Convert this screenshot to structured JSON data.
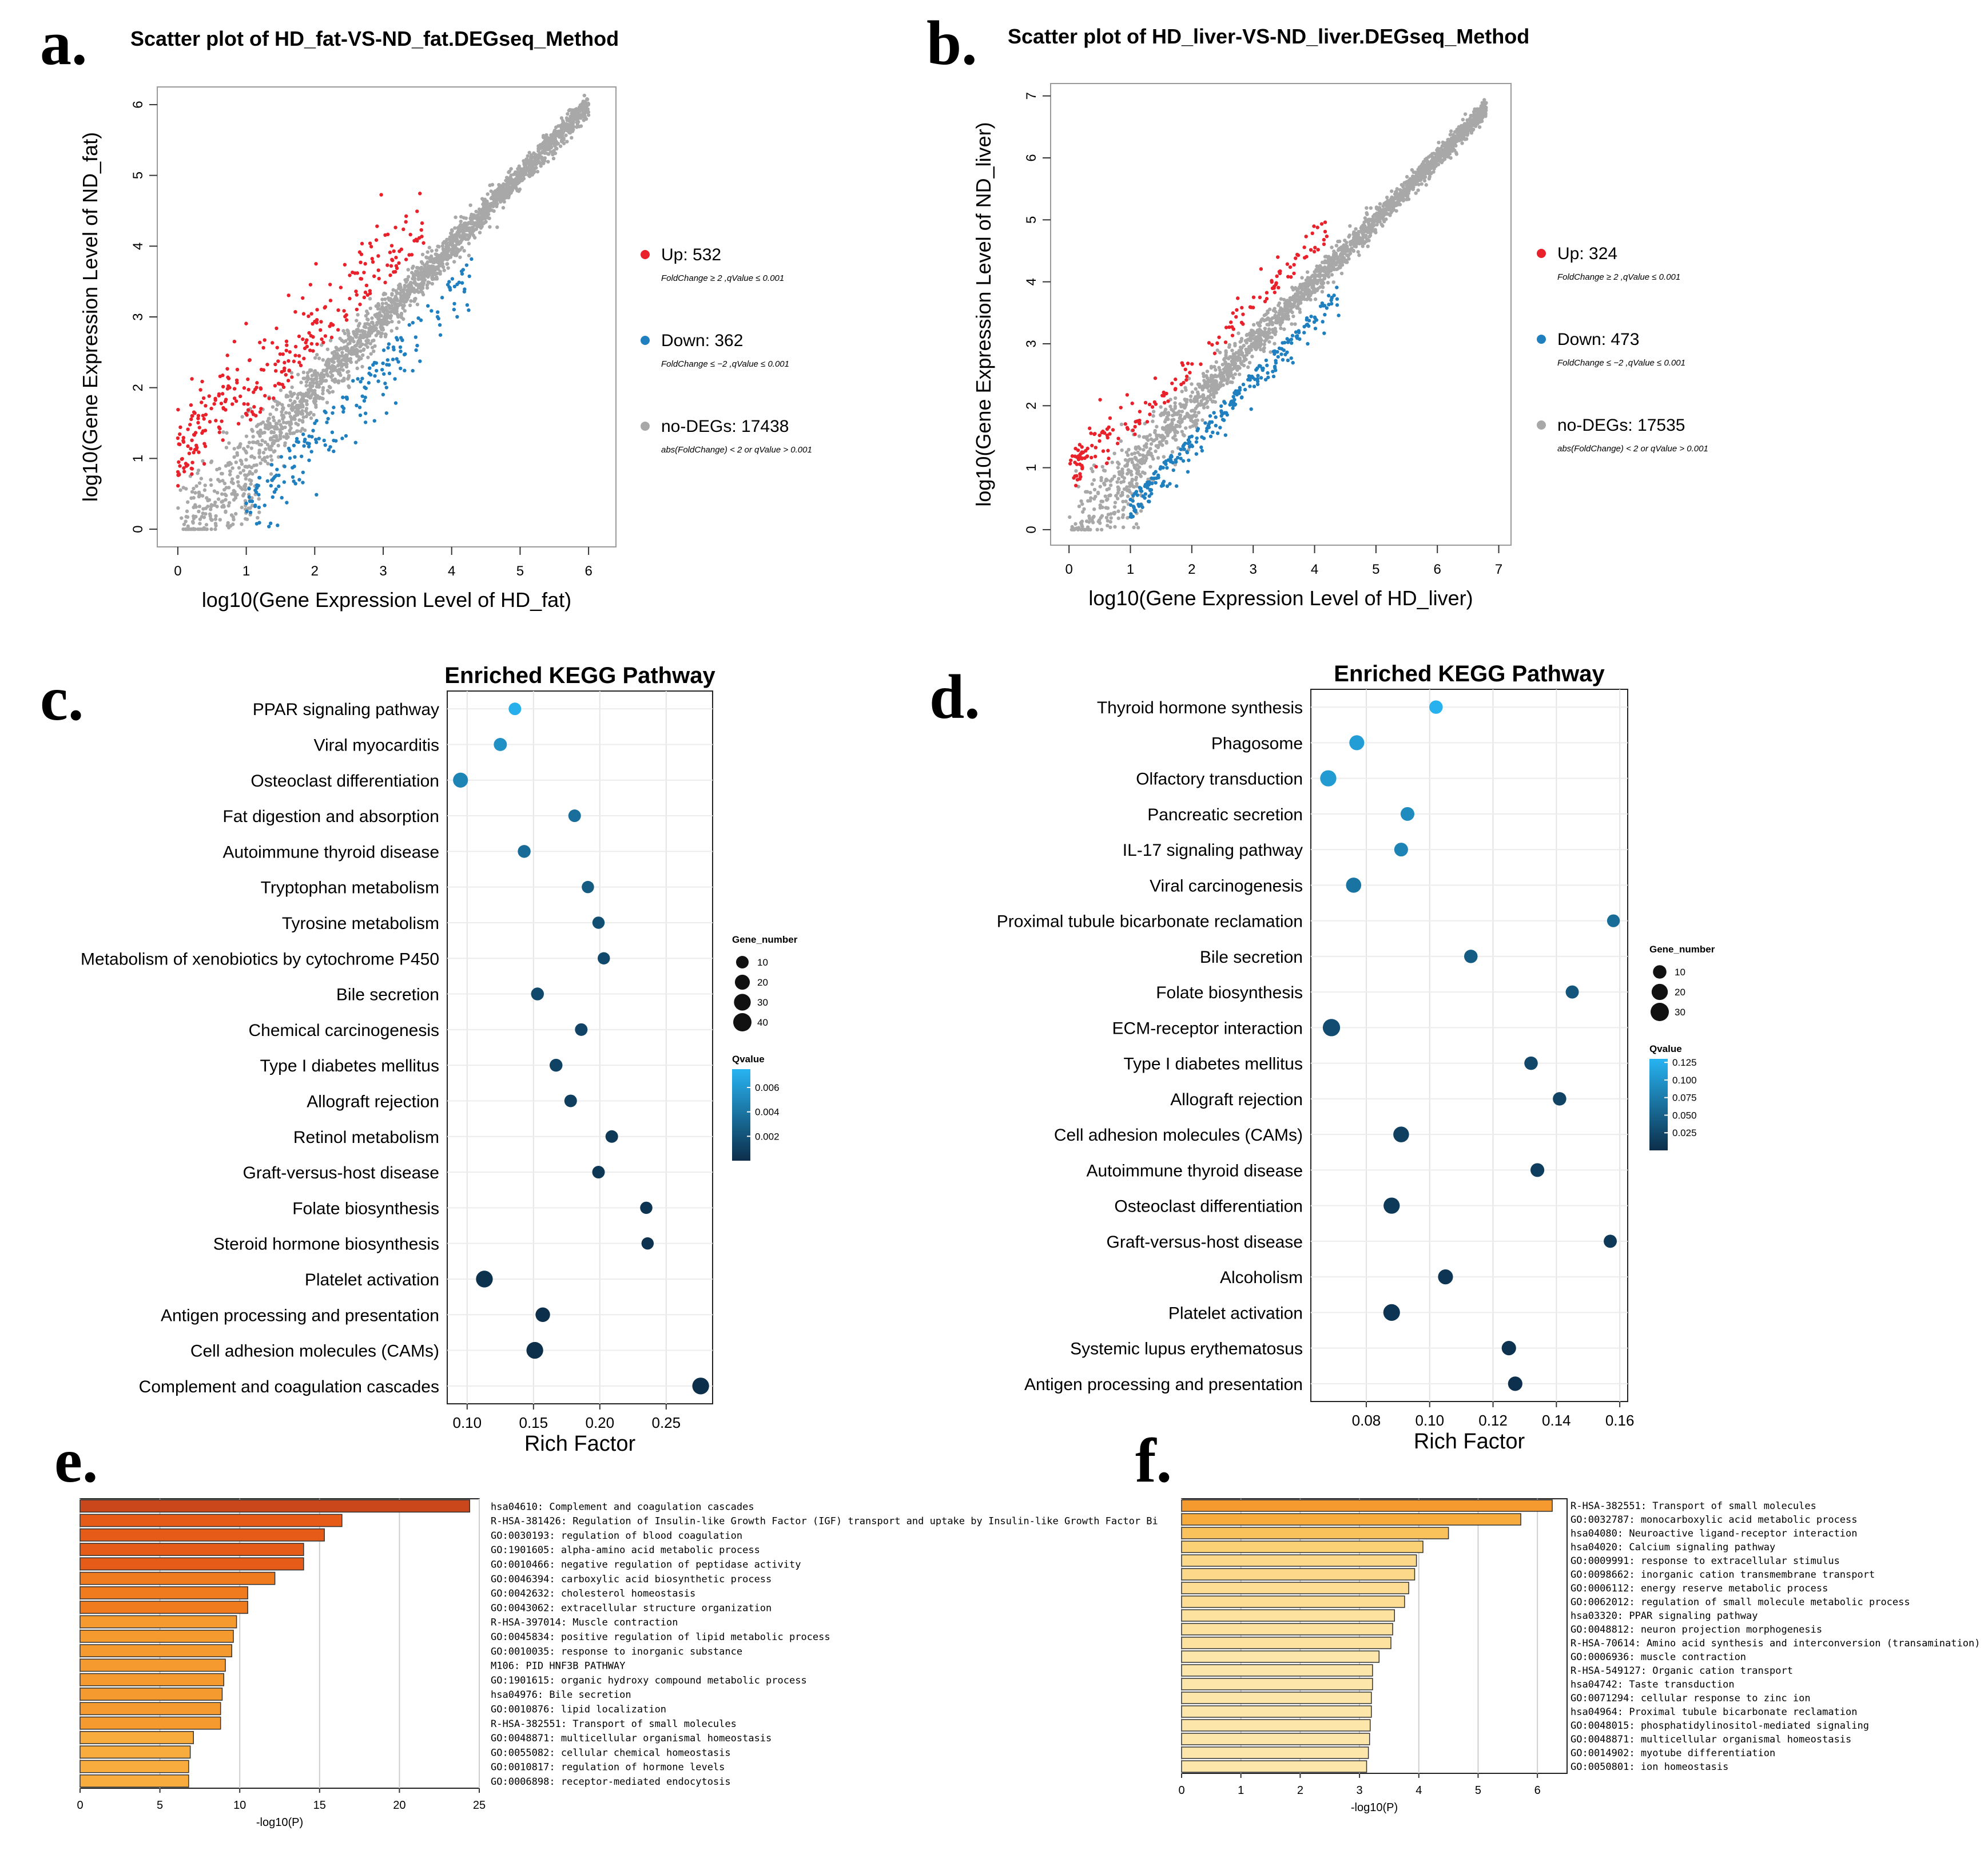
{
  "panels": [
    {
      "letter": "a."
    },
    {
      "letter": "b."
    },
    {
      "letter": "c."
    },
    {
      "letter": "d."
    },
    {
      "letter": "e."
    },
    {
      "letter": "f."
    }
  ],
  "chart_data": [
    {
      "panel": "a",
      "type": "scatter",
      "title": "Scatter plot of HD_fat-VS-ND_fat.DEGseq_Method",
      "xlabel": "log10(Gene Expression Level of HD_fat)",
      "ylabel": "log10(Gene Expression Level of ND_fat)",
      "xlim": [
        -0.3,
        6.4
      ],
      "ylim": [
        -0.25,
        6.25
      ],
      "xticks": [
        0,
        1,
        2,
        3,
        4,
        5,
        6
      ],
      "yticks": [
        0,
        1,
        2,
        3,
        4,
        5,
        6
      ],
      "legend_position": "right",
      "legend": [
        {
          "label": "Up: 532",
          "note": "FoldChange ≥ 2 ,qValue ≤ 0.001",
          "color": "#e8212b",
          "count": 532
        },
        {
          "label": "Down: 362",
          "note": "FoldChange ≤ −2 ,qValue ≤ 0.001",
          "color": "#1f7fbf",
          "count": 362
        },
        {
          "label": "no-DEGs: 17438",
          "note": "abs(FoldChange) < 2  or qValue > 0.001",
          "color": "#a8a8a8",
          "count": 17438
        }
      ]
    },
    {
      "panel": "b",
      "type": "scatter",
      "title": "Scatter plot of HD_liver-VS-ND_liver.DEGseq_Method",
      "xlabel": "log10(Gene Expression Level of HD_liver)",
      "ylabel": "log10(Gene Expression Level of ND_liver)",
      "xlim": [
        -0.3,
        7.2
      ],
      "ylim": [
        -0.25,
        7.2
      ],
      "xticks": [
        0,
        1,
        2,
        3,
        4,
        5,
        6,
        7
      ],
      "yticks": [
        0,
        1,
        2,
        3,
        4,
        5,
        6,
        7
      ],
      "legend_position": "right",
      "legend": [
        {
          "label": "Up: 324",
          "note": "FoldChange ≥ 2 ,qValue ≤ 0.001",
          "color": "#e8212b",
          "count": 324
        },
        {
          "label": "Down: 473",
          "note": "FoldChange ≤ −2 ,qValue ≤ 0.001",
          "color": "#1f7fbf",
          "count": 473
        },
        {
          "label": "no-DEGs: 17535",
          "note": "abs(FoldChange) < 2  or qValue > 0.001",
          "color": "#a8a8a8",
          "count": 17535
        }
      ]
    },
    {
      "panel": "c",
      "type": "scatter",
      "title": "Enriched KEGG Pathway",
      "xlabel": "Rich Factor",
      "xlim": [
        0.085,
        0.285
      ],
      "xticks": [
        "0.10",
        "0.15",
        "0.20",
        "0.25"
      ],
      "size_title": "Gene_number",
      "sizes": [
        10,
        20,
        30,
        40
      ],
      "color_title": "Qvalue",
      "color_ticks": [
        "0.006",
        "0.004",
        "0.002"
      ],
      "color_range": [
        0.0,
        0.0075
      ],
      "pathways": [
        {
          "name": "PPAR signaling pathway",
          "rich": 0.136,
          "genes": 10,
          "q": 0.0072
        },
        {
          "name": "Viral myocarditis",
          "rich": 0.125,
          "genes": 12,
          "q": 0.0055
        },
        {
          "name": "Osteoclast differentiation",
          "rich": 0.095,
          "genes": 20,
          "q": 0.0048
        },
        {
          "name": "Fat digestion and absorption",
          "rich": 0.181,
          "genes": 10,
          "q": 0.0036
        },
        {
          "name": "Autoimmune thyroid disease",
          "rich": 0.143,
          "genes": 11,
          "q": 0.0034
        },
        {
          "name": "Tryptophan metabolism",
          "rich": 0.191,
          "genes": 9,
          "q": 0.0025
        },
        {
          "name": "Tyrosine metabolism",
          "rich": 0.199,
          "genes": 9,
          "q": 0.0018
        },
        {
          "name": "Metabolism of xenobiotics by cytochrome P450",
          "rich": 0.203,
          "genes": 9,
          "q": 0.0015
        },
        {
          "name": "Bile secretion",
          "rich": 0.153,
          "genes": 11,
          "q": 0.0015
        },
        {
          "name": "Chemical carcinogenesis",
          "rich": 0.186,
          "genes": 10,
          "q": 0.0012
        },
        {
          "name": "Type I diabetes mellitus",
          "rich": 0.167,
          "genes": 11,
          "q": 0.0011
        },
        {
          "name": "Allograft rejection",
          "rich": 0.178,
          "genes": 10,
          "q": 0.0009
        },
        {
          "name": "Retinol metabolism",
          "rich": 0.209,
          "genes": 10,
          "q": 0.0006
        },
        {
          "name": "Graft-versus-host disease",
          "rich": 0.199,
          "genes": 10,
          "q": 0.0005
        },
        {
          "name": "Folate biosynthesis",
          "rich": 0.235,
          "genes": 9,
          "q": 0.0004
        },
        {
          "name": "Steroid hormone biosynthesis",
          "rich": 0.236,
          "genes": 9,
          "q": 0.0003
        },
        {
          "name": "Platelet activation",
          "rich": 0.113,
          "genes": 30,
          "q": 0.0002
        },
        {
          "name": "Antigen processing and presentation",
          "rich": 0.157,
          "genes": 18,
          "q": 0.0001
        },
        {
          "name": "Cell adhesion molecules (CAMs)",
          "rich": 0.151,
          "genes": 30,
          "q": 0.0001
        },
        {
          "name": "Complement and coagulation cascades",
          "rich": 0.276,
          "genes": 30,
          "q": 5e-05
        }
      ]
    },
    {
      "panel": "d",
      "type": "scatter",
      "title": "Enriched KEGG Pathway",
      "xlabel": "Rich Factor",
      "xlim": [
        0.0625,
        0.1625
      ],
      "xticks": [
        "0.08",
        "0.10",
        "0.12",
        "0.14",
        "0.16"
      ],
      "size_title": "Gene_number",
      "sizes": [
        10,
        20,
        30
      ],
      "color_title": "Qvalue",
      "color_ticks": [
        "0.125",
        "0.100",
        "0.075",
        "0.050",
        "0.025"
      ],
      "color_range": [
        0.0,
        0.13
      ],
      "pathways": [
        {
          "name": "Thyroid hormone synthesis",
          "rich": 0.102,
          "genes": 10,
          "q": 0.128
        },
        {
          "name": "Phagosome",
          "rich": 0.077,
          "genes": 15,
          "q": 0.108
        },
        {
          "name": "Olfactory transduction",
          "rich": 0.068,
          "genes": 20,
          "q": 0.105
        },
        {
          "name": "Pancreatic secretion",
          "rich": 0.093,
          "genes": 11,
          "q": 0.09
        },
        {
          "name": "IL-17 signaling pathway",
          "rich": 0.091,
          "genes": 11,
          "q": 0.082
        },
        {
          "name": "Viral carcinogenesis",
          "rich": 0.076,
          "genes": 16,
          "q": 0.068
        },
        {
          "name": "Proximal tubule bicarbonate reclamation",
          "rich": 0.158,
          "genes": 8,
          "q": 0.06
        },
        {
          "name": "Bile secretion",
          "rich": 0.113,
          "genes": 10,
          "q": 0.045
        },
        {
          "name": "Folate biosynthesis",
          "rich": 0.145,
          "genes": 9,
          "q": 0.038
        },
        {
          "name": "ECM-receptor interaction",
          "rich": 0.069,
          "genes": 25,
          "q": 0.03
        },
        {
          "name": "Type I diabetes mellitus",
          "rich": 0.132,
          "genes": 10,
          "q": 0.025
        },
        {
          "name": "Allograft rejection",
          "rich": 0.141,
          "genes": 10,
          "q": 0.02
        },
        {
          "name": "Cell adhesion molecules (CAMs)",
          "rich": 0.091,
          "genes": 18,
          "q": 0.017
        },
        {
          "name": "Autoimmune thyroid disease",
          "rich": 0.134,
          "genes": 11,
          "q": 0.015
        },
        {
          "name": "Osteoclast differentiation",
          "rich": 0.088,
          "genes": 20,
          "q": 0.012
        },
        {
          "name": "Graft-versus-host disease",
          "rich": 0.157,
          "genes": 9,
          "q": 0.01
        },
        {
          "name": "Alcoholism",
          "rich": 0.105,
          "genes": 15,
          "q": 0.008
        },
        {
          "name": "Platelet activation",
          "rich": 0.088,
          "genes": 22,
          "q": 0.006
        },
        {
          "name": "Systemic lupus erythematosus",
          "rich": 0.125,
          "genes": 13,
          "q": 0.004
        },
        {
          "name": "Antigen processing and presentation",
          "rich": 0.127,
          "genes": 13,
          "q": 0.002
        }
      ]
    },
    {
      "panel": "e",
      "type": "bar",
      "orientation": "horizontal",
      "xlabel": "-log10(P)",
      "xlim": [
        0,
        25
      ],
      "xticks": [
        0,
        5,
        10,
        15,
        20,
        25
      ],
      "grid": true,
      "bars": [
        {
          "label": "hsa04610: Complement and coagulation cascades",
          "value": 24.4,
          "color": "#c9471a"
        },
        {
          "label": "R-HSA-381426: Regulation of Insulin-like Growth Factor (IGF) transport and uptake by Insulin-like Growth Factor Bi",
          "value": 16.4,
          "color": "#e55b17"
        },
        {
          "label": "GO:0030193: regulation of blood coagulation",
          "value": 15.3,
          "color": "#e55b17"
        },
        {
          "label": "GO:1901605: alpha-amino acid metabolic process",
          "value": 14.0,
          "color": "#e55b17"
        },
        {
          "label": "GO:0010466: negative regulation of peptidase activity",
          "value": 14.0,
          "color": "#e55b17"
        },
        {
          "label": "GO:0046394: carboxylic acid biosynthetic process",
          "value": 12.2,
          "color": "#f07a1e"
        },
        {
          "label": "GO:0042632: cholesterol homeostasis",
          "value": 10.5,
          "color": "#f07a1e"
        },
        {
          "label": "GO:0043062: extracellular structure organization",
          "value": 10.5,
          "color": "#f07a1e"
        },
        {
          "label": "R-HSA-397014: Muscle contraction",
          "value": 9.8,
          "color": "#f59a2e"
        },
        {
          "label": "GO:0045834: positive regulation of lipid metabolic process",
          "value": 9.6,
          "color": "#f59a2e"
        },
        {
          "label": "GO:0010035: response to inorganic substance",
          "value": 9.5,
          "color": "#f59a2e"
        },
        {
          "label": "M106: PID HNF3B PATHWAY",
          "value": 9.1,
          "color": "#f59a2e"
        },
        {
          "label": "GO:1901615: organic hydroxy compound metabolic process",
          "value": 9.0,
          "color": "#f59a2e"
        },
        {
          "label": "hsa04976: Bile secretion",
          "value": 8.9,
          "color": "#f59a2e"
        },
        {
          "label": "GO:0010876: lipid localization",
          "value": 8.8,
          "color": "#f59a2e"
        },
        {
          "label": "R-HSA-382551: Transport of small molecules",
          "value": 8.8,
          "color": "#f59a2e"
        },
        {
          "label": "GO:0048871: multicellular organismal homeostasis",
          "value": 7.1,
          "color": "#f8ac3e"
        },
        {
          "label": "GO:0055082: cellular chemical homeostasis",
          "value": 6.9,
          "color": "#f8ac3e"
        },
        {
          "label": "GO:0010817: regulation of hormone levels",
          "value": 6.8,
          "color": "#f8ac3e"
        },
        {
          "label": "GO:0006898: receptor-mediated endocytosis",
          "value": 6.8,
          "color": "#f8ac3e"
        }
      ]
    },
    {
      "panel": "f",
      "type": "bar",
      "orientation": "horizontal",
      "xlabel": "-log10(P)",
      "xlim": [
        0,
        6.5
      ],
      "xticks": [
        0,
        1,
        2,
        3,
        4,
        5,
        6
      ],
      "grid": true,
      "bars": [
        {
          "label": "R-HSA-382551: Transport of small molecules",
          "value": 6.25,
          "color": "#f59a2e"
        },
        {
          "label": "GO:0032787: monocarboxylic acid metabolic process",
          "value": 5.72,
          "color": "#f7ab3c"
        },
        {
          "label": "hsa04080: Neuroactive ligand-receptor interaction",
          "value": 4.5,
          "color": "#f9c25a"
        },
        {
          "label": "hsa04020: Calcium signaling pathway",
          "value": 4.07,
          "color": "#fbd176"
        },
        {
          "label": "GO:0009991: response to extracellular stimulus",
          "value": 3.96,
          "color": "#fcd98a"
        },
        {
          "label": "GO:0098662: inorganic cation transmembrane transport",
          "value": 3.93,
          "color": "#fcd98a"
        },
        {
          "label": "GO:0006112: energy reserve metabolic process",
          "value": 3.83,
          "color": "#fcdd93"
        },
        {
          "label": "GO:0062012: regulation of small molecule metabolic process",
          "value": 3.76,
          "color": "#fcdd93"
        },
        {
          "label": "hsa03320: PPAR signaling pathway",
          "value": 3.59,
          "color": "#fde29f"
        },
        {
          "label": "GO:0048812: neuron projection morphogenesis",
          "value": 3.56,
          "color": "#fde29f"
        },
        {
          "label": "R-HSA-70614: Amino acid synthesis and interconversion (transamination)",
          "value": 3.53,
          "color": "#fde29f"
        },
        {
          "label": "GO:0006936: muscle contraction",
          "value": 3.33,
          "color": "#fde6aa"
        },
        {
          "label": "R-HSA-549127: Organic cation transport",
          "value": 3.22,
          "color": "#fde6aa"
        },
        {
          "label": "hsa04742: Taste transduction",
          "value": 3.22,
          "color": "#fde6aa"
        },
        {
          "label": "GO:0071294: cellular response to zinc ion",
          "value": 3.2,
          "color": "#fde6aa"
        },
        {
          "label": "hsa04964: Proximal tubule bicarbonate reclamation",
          "value": 3.2,
          "color": "#fde6aa"
        },
        {
          "label": "GO:0048015: phosphatidylinositol-mediated signaling",
          "value": 3.18,
          "color": "#fde6aa"
        },
        {
          "label": "GO:0048871: multicellular organismal homeostasis",
          "value": 3.17,
          "color": "#fde6aa"
        },
        {
          "label": "GO:0014902: myotube differentiation",
          "value": 3.15,
          "color": "#fde6aa"
        },
        {
          "label": "GO:0050801: ion homeostasis",
          "value": 3.12,
          "color": "#fde6aa"
        }
      ]
    }
  ]
}
